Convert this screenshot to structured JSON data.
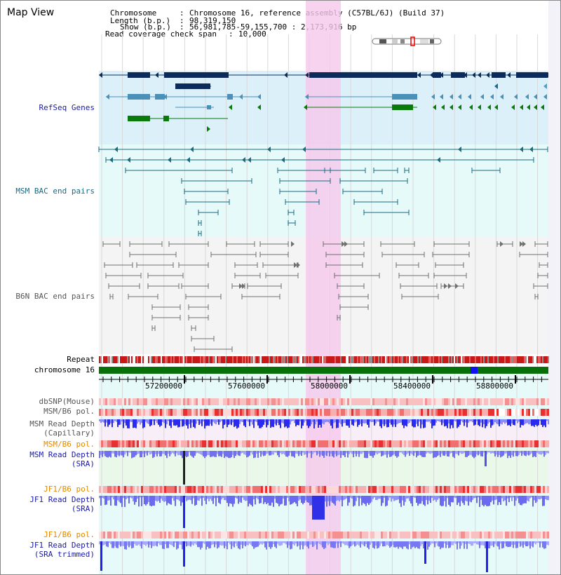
{
  "page": {
    "title": "Map View"
  },
  "info": {
    "chromosome_key": "Chromosome",
    "chromosome_val": "Chromosome 16, reference assembly (C57BL/6J) (Build 37)",
    "length_key": "Length (b.p.)",
    "length_val": "98,319,150",
    "show_key": "Show (b.p.)",
    "show_val": "56,981,785-59,155,700 : 2,173,916 bp",
    "coverage_key": "Read coverage check span",
    "coverage_val": "10,000"
  },
  "tracks": {
    "refseq": "RefSeq Genes",
    "msm_bac": "MSM BAC end pairs",
    "b6n_bac": "B6N BAC end pairs",
    "repeat": "Repeat",
    "chromosome": "chromosome 16",
    "dbsnp": "dbSNP(Mouse)",
    "msm_b6_pol_1": "MSM/B6 pol.",
    "msm_read_depth_cap_1": "MSM Read Depth",
    "msm_read_depth_cap_2": "(Capillary)",
    "msm_b6_pol_2": "MSM/B6 pol.",
    "msm_read_depth_sra_1": "MSM Read Depth",
    "msm_read_depth_sra_2": "(SRA)",
    "jf1_b6_pol_1": "JF1/B6 pol.",
    "jf1_read_depth_sra_1": "JF1 Read Depth",
    "jf1_read_depth_sra_2": "(SRA)",
    "jf1_b6_pol_2": "JF1/B6 pol.",
    "jf1_read_depth_trim_1": "JF1 Read Depth",
    "jf1_read_depth_trim_2": "(SRA trimmed)"
  },
  "axis": {
    "ticks": [
      "57200000",
      "57600000",
      "58000000",
      "58400000",
      "58800000"
    ]
  },
  "colors": {
    "refseq_bg": "#dcf0fa",
    "msm_bg": "#e6fafa",
    "b6n_bg": "#f4f4f4",
    "highlight": "#f6c8ec",
    "navy": "#0c2a5a",
    "steel": "#4a90b8",
    "green": "#0a7a0a",
    "teal": "#1a6a80",
    "gray": "#707070",
    "repeat_red": "#c81818",
    "chrom_green": "#087008",
    "depth_blue": "#2020f0",
    "depth_light": "#8080ff",
    "label_blue": "#1a1aa8",
    "label_teal": "#1a6a80",
    "label_orange": "#e08a00"
  }
}
